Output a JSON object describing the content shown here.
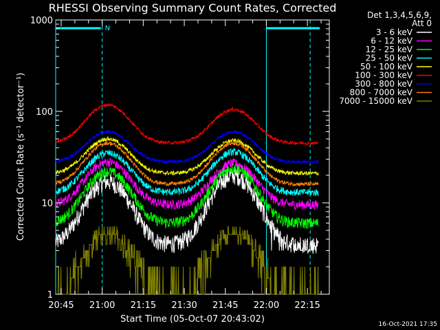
{
  "chart_data": {
    "type": "line",
    "title": "RHESSI Observing Summary Count Rates, Corrected",
    "xlabel": "Start Time (05-Oct-07 20:43:02)",
    "ylabel": "Corrected Count Rate (s⁻¹ detector⁻¹)",
    "y_scale": "log",
    "ylim": [
      1,
      1000
    ],
    "xlim_minutes": [
      0,
      100
    ],
    "x_ticks": [
      {
        "label": "20:45",
        "t": 2
      },
      {
        "label": "21:00",
        "t": 17
      },
      {
        "label": "21:15",
        "t": 32
      },
      {
        "label": "21:30",
        "t": 47
      },
      {
        "label": "21:45",
        "t": 62
      },
      {
        "label": "22:00",
        "t": 77
      },
      {
        "label": "22:15",
        "t": 92
      }
    ],
    "y_ticks": [
      {
        "label": "1",
        "v": 1
      },
      {
        "label": "10",
        "v": 10
      },
      {
        "label": "100",
        "v": 100
      },
      {
        "label": "1000",
        "v": 1000
      }
    ],
    "legend": {
      "placement": "top-right",
      "header": [
        "Det 1,3,4,5,6,9,",
        "Att 0"
      ]
    },
    "annotation": {
      "label": "N",
      "t": 17
    },
    "night_markers_t": [
      17,
      93
    ],
    "saa_edges_t": [
      0,
      77
    ],
    "footer_date": "16-Oct-2021 17:35",
    "series": [
      {
        "name": "3 - 6 keV",
        "color": "#ffffff",
        "base": 3.5,
        "peak1": 17,
        "peak2": 20,
        "noise": 0.22
      },
      {
        "name": "6 - 12 keV",
        "color": "#ff00ff",
        "base": 9.5,
        "peak1": 28,
        "peak2": 27,
        "noise": 0.12
      },
      {
        "name": "12 - 25 keV",
        "color": "#00ff00",
        "base": 6,
        "peak1": 22,
        "peak2": 24,
        "noise": 0.14
      },
      {
        "name": "25 - 50 keV",
        "color": "#00ffff",
        "base": 13,
        "peak1": 35,
        "peak2": 36,
        "noise": 0.09
      },
      {
        "name": "50 - 100 keV",
        "color": "#ffff00",
        "base": 21,
        "peak1": 50,
        "peak2": 48,
        "noise": 0.05
      },
      {
        "name": "100 - 300 keV",
        "color": "#ff0000",
        "base": 45,
        "peak1": 118,
        "peak2": 105,
        "noise": 0.04
      },
      {
        "name": "300 - 800 keV",
        "color": "#0000ff",
        "base": 28,
        "peak1": 60,
        "peak2": 60,
        "noise": 0.04
      },
      {
        "name": "800 - 7000 keV",
        "color": "#ff8000",
        "base": 16,
        "peak1": 45,
        "peak2": 45,
        "noise": 0.05
      },
      {
        "name": "7000 - 15000 keV",
        "color": "#808000",
        "base": 1,
        "peak1": 4.7,
        "peak2": 4.7,
        "noise": 0.0
      }
    ]
  }
}
